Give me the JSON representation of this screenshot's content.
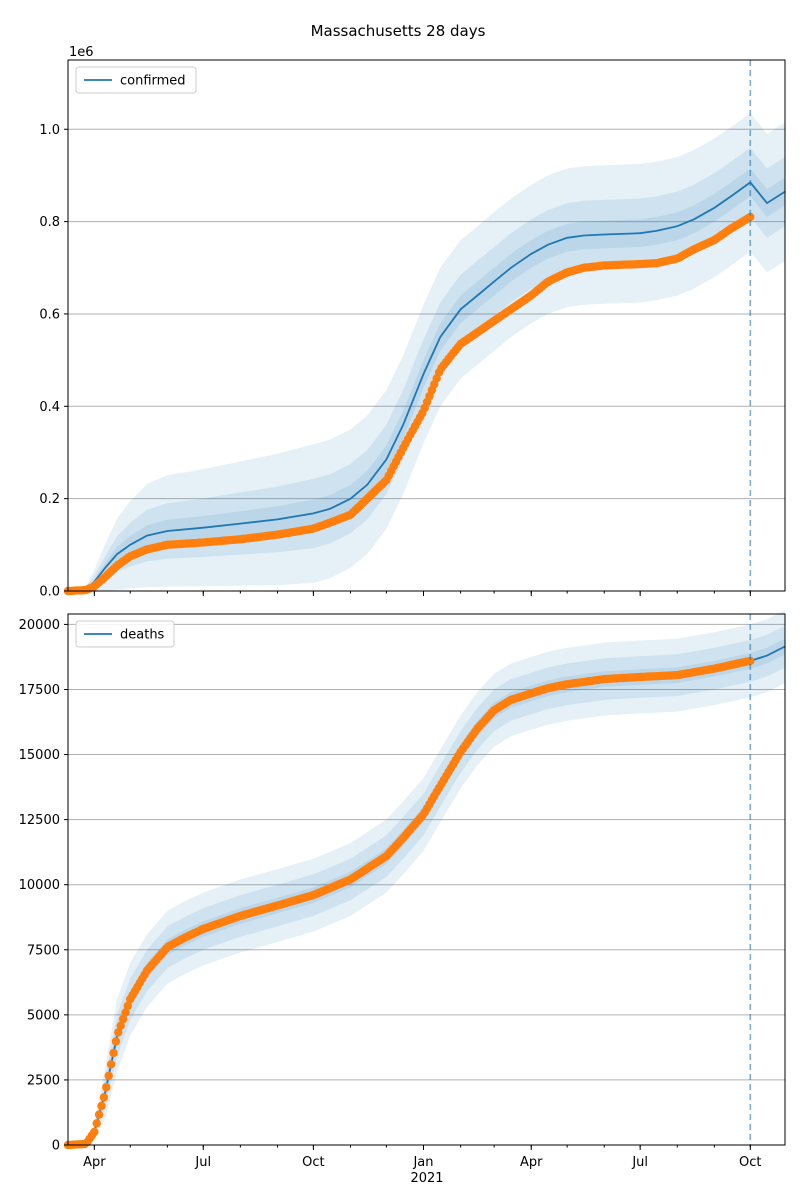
{
  "chart_data": {
    "title": "Massachusetts 28 days",
    "x_tick_labels": [
      "Apr",
      "Jul",
      "Oct",
      "Jan",
      "Apr",
      "Jul",
      "Oct"
    ],
    "x_year_label": "2021",
    "forecast_start": "2021-10-01",
    "observed_end": "2021-10-01",
    "colors": {
      "model": "#1f77b4",
      "observed": "#ff7f0e",
      "band": "#1f77b4",
      "grid": "#b0b0b0"
    },
    "panels": [
      {
        "type": "line",
        "series_name": "confirmed",
        "legend_label": "confirmed",
        "legend_position": "upper-left",
        "y_offset_label": "1e6",
        "ylim": [
          0,
          1.15
        ],
        "x_range": [
          "2020-03-10",
          "2021-10-30"
        ],
        "y_ticks": [
          0.0,
          0.2,
          0.4,
          0.6,
          0.8,
          1.0
        ],
        "y_tick_labels": [
          "0.0",
          "0.2",
          "0.4",
          "0.6",
          "0.8",
          "1.0"
        ],
        "model": {
          "dates": [
            "2020-03-10",
            "2020-03-25",
            "2020-04-01",
            "2020-04-10",
            "2020-04-20",
            "2020-05-01",
            "2020-05-15",
            "2020-06-01",
            "2020-07-01",
            "2020-08-01",
            "2020-09-01",
            "2020-10-01",
            "2020-10-15",
            "2020-11-01",
            "2020-11-15",
            "2020-12-01",
            "2020-12-15",
            "2021-01-01",
            "2021-01-15",
            "2021-02-01",
            "2021-02-15",
            "2021-03-01",
            "2021-03-15",
            "2021-04-01",
            "2021-04-15",
            "2021-05-01",
            "2021-05-15",
            "2021-06-01",
            "2021-07-01",
            "2021-07-15",
            "2021-08-01",
            "2021-08-15",
            "2021-09-01",
            "2021-09-15",
            "2021-10-01",
            "2021-10-15",
            "2021-10-30"
          ],
          "values": [
            0.0,
            0.002,
            0.02,
            0.05,
            0.08,
            0.1,
            0.12,
            0.13,
            0.137,
            0.146,
            0.155,
            0.168,
            0.178,
            0.2,
            0.23,
            0.285,
            0.36,
            0.47,
            0.55,
            0.61,
            0.64,
            0.67,
            0.7,
            0.73,
            0.75,
            0.765,
            0.77,
            0.772,
            0.775,
            0.78,
            0.79,
            0.805,
            0.83,
            0.855,
            0.885,
            0.84,
            0.865
          ],
          "band_offsets": [
            0.03,
            0.075,
            0.15
          ]
        },
        "observed": {
          "dates": [
            "2020-03-10",
            "2020-03-25",
            "2020-04-01",
            "2020-04-10",
            "2020-04-20",
            "2020-05-01",
            "2020-05-15",
            "2020-06-01",
            "2020-07-01",
            "2020-08-01",
            "2020-09-01",
            "2020-10-01",
            "2020-10-15",
            "2020-11-01",
            "2020-11-15",
            "2020-12-01",
            "2020-12-15",
            "2021-01-01",
            "2021-01-15",
            "2021-02-01",
            "2021-02-15",
            "2021-03-01",
            "2021-03-15",
            "2021-04-01",
            "2021-04-15",
            "2021-05-01",
            "2021-05-15",
            "2021-06-01",
            "2021-07-01",
            "2021-07-15",
            "2021-08-01",
            "2021-08-15",
            "2021-09-01",
            "2021-09-15",
            "2021-10-01"
          ],
          "values": [
            0.0,
            0.002,
            0.01,
            0.03,
            0.055,
            0.075,
            0.09,
            0.1,
            0.105,
            0.112,
            0.122,
            0.135,
            0.148,
            0.165,
            0.2,
            0.24,
            0.31,
            0.39,
            0.48,
            0.535,
            0.56,
            0.585,
            0.61,
            0.64,
            0.67,
            0.69,
            0.7,
            0.705,
            0.708,
            0.71,
            0.72,
            0.74,
            0.76,
            0.785,
            0.81
          ]
        }
      },
      {
        "type": "line",
        "series_name": "deaths",
        "legend_label": "deaths",
        "legend_position": "upper-left",
        "ylim": [
          0,
          20400
        ],
        "x_range": [
          "2020-03-10",
          "2021-10-30"
        ],
        "y_ticks": [
          0,
          2500,
          5000,
          7500,
          10000,
          12500,
          15000,
          17500,
          20000
        ],
        "y_tick_labels": [
          "0",
          "2500",
          "5000",
          "7500",
          "10000",
          "12500",
          "15000",
          "17500",
          "20000"
        ],
        "model": {
          "dates": [
            "2020-03-10",
            "2020-03-25",
            "2020-04-01",
            "2020-04-10",
            "2020-04-20",
            "2020-05-01",
            "2020-05-15",
            "2020-06-01",
            "2020-06-15",
            "2020-07-01",
            "2020-08-01",
            "2020-09-01",
            "2020-10-01",
            "2020-11-01",
            "2020-12-01",
            "2020-12-15",
            "2021-01-01",
            "2021-01-15",
            "2021-02-01",
            "2021-02-15",
            "2021-03-01",
            "2021-03-15",
            "2021-04-01",
            "2021-04-15",
            "2021-05-01",
            "2021-06-01",
            "2021-07-01",
            "2021-08-01",
            "2021-09-01",
            "2021-10-01",
            "2021-10-15",
            "2021-10-30"
          ],
          "values": [
            0,
            40,
            500,
            2000,
            4200,
            5600,
            6700,
            7600,
            7950,
            8300,
            8800,
            9200,
            9600,
            10200,
            11100,
            11800,
            12700,
            13800,
            15100,
            16000,
            16700,
            17100,
            17350,
            17550,
            17700,
            17900,
            17980,
            18050,
            18300,
            18600,
            18800,
            19150
          ],
          "band_offsets": [
            300,
            800,
            1400
          ]
        },
        "observed": {
          "dates": [
            "2020-03-10",
            "2020-03-25",
            "2020-04-01",
            "2020-04-10",
            "2020-04-20",
            "2020-05-01",
            "2020-05-15",
            "2020-06-01",
            "2020-06-15",
            "2020-07-01",
            "2020-08-01",
            "2020-09-01",
            "2020-10-01",
            "2020-11-01",
            "2020-12-01",
            "2020-12-15",
            "2021-01-01",
            "2021-01-15",
            "2021-02-01",
            "2021-02-15",
            "2021-03-01",
            "2021-03-15",
            "2021-04-01",
            "2021-04-15",
            "2021-05-01",
            "2021-06-01",
            "2021-07-01",
            "2021-08-01",
            "2021-09-01",
            "2021-10-01"
          ],
          "values": [
            0,
            40,
            500,
            2000,
            4200,
            5600,
            6700,
            7600,
            7950,
            8300,
            8800,
            9200,
            9600,
            10200,
            11100,
            11800,
            12700,
            13800,
            15100,
            16000,
            16700,
            17100,
            17350,
            17550,
            17700,
            17900,
            17980,
            18050,
            18300,
            18600
          ]
        }
      }
    ]
  }
}
